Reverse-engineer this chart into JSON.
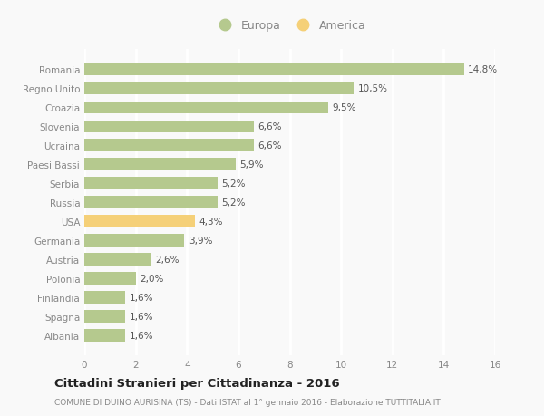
{
  "categories": [
    "Romania",
    "Regno Unito",
    "Croazia",
    "Slovenia",
    "Ucraina",
    "Paesi Bassi",
    "Serbia",
    "Russia",
    "USA",
    "Germania",
    "Austria",
    "Polonia",
    "Finlandia",
    "Spagna",
    "Albania"
  ],
  "values": [
    14.8,
    10.5,
    9.5,
    6.6,
    6.6,
    5.9,
    5.2,
    5.2,
    4.3,
    3.9,
    2.6,
    2.0,
    1.6,
    1.6,
    1.6
  ],
  "labels": [
    "14,8%",
    "10,5%",
    "9,5%",
    "6,6%",
    "6,6%",
    "5,9%",
    "5,2%",
    "5,2%",
    "4,3%",
    "3,9%",
    "2,6%",
    "2,0%",
    "1,6%",
    "1,6%",
    "1,6%"
  ],
  "colors": [
    "#b5c98e",
    "#b5c98e",
    "#b5c98e",
    "#b5c98e",
    "#b5c98e",
    "#b5c98e",
    "#b5c98e",
    "#b5c98e",
    "#f5d078",
    "#b5c98e",
    "#b5c98e",
    "#b5c98e",
    "#b5c98e",
    "#b5c98e",
    "#b5c98e"
  ],
  "europa_color": "#b5c98e",
  "america_color": "#f5d078",
  "xlim": [
    0,
    16
  ],
  "xticks": [
    0,
    2,
    4,
    6,
    8,
    10,
    12,
    14,
    16
  ],
  "title": "Cittadini Stranieri per Cittadinanza - 2016",
  "subtitle": "COMUNE DI DUINO AURISINA (TS) - Dati ISTAT al 1° gennaio 2016 - Elaborazione TUTTITALIA.IT",
  "background_color": "#f9f9f9",
  "grid_color": "#ffffff",
  "legend_europa": "Europa",
  "legend_america": "America",
  "text_color": "#888888",
  "label_color": "#555555",
  "title_color": "#222222"
}
